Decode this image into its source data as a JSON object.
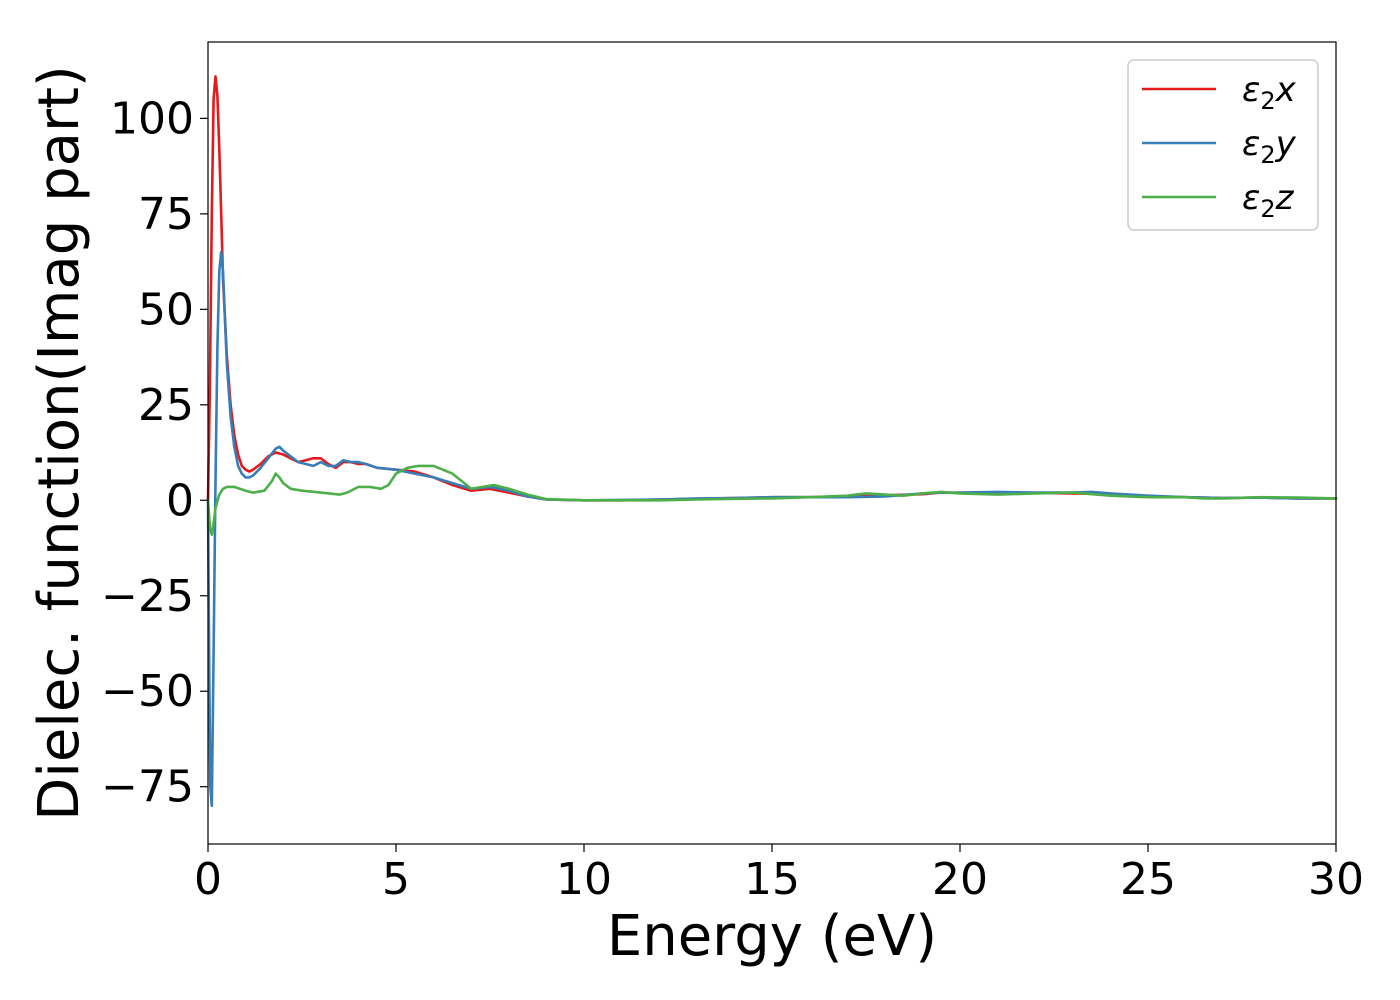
{
  "chart_data": {
    "type": "line",
    "title": "",
    "xlabel": "Energy (eV)",
    "ylabel": "Dielec. function(Imag part)",
    "xlim": [
      0,
      30
    ],
    "ylim": [
      -90,
      120
    ],
    "xticks": [
      0,
      5,
      10,
      15,
      20,
      25,
      30
    ],
    "xtick_labels": [
      "0",
      "5",
      "10",
      "15",
      "20",
      "25",
      "30"
    ],
    "yticks": [
      -75,
      -50,
      -25,
      0,
      25,
      50,
      75,
      100
    ],
    "ytick_labels": [
      "−75",
      "−50",
      "−25",
      "0",
      "25",
      "50",
      "75",
      "100"
    ],
    "grid": false,
    "legend_position": "top-right",
    "series": [
      {
        "name": "ε2x",
        "legend_base": "ε",
        "legend_sub": "2",
        "legend_var": "x",
        "color": "#e41a1c",
        "x": [
          0,
          0.05,
          0.1,
          0.15,
          0.2,
          0.25,
          0.3,
          0.35,
          0.4,
          0.5,
          0.6,
          0.7,
          0.8,
          0.9,
          1.0,
          1.1,
          1.2,
          1.4,
          1.6,
          1.8,
          2.0,
          2.2,
          2.4,
          2.6,
          2.8,
          3.0,
          3.2,
          3.4,
          3.6,
          3.8,
          4.0,
          4.2,
          4.5,
          5.0,
          5.5,
          6.0,
          6.5,
          7.0,
          7.5,
          8.0,
          8.5,
          9.0,
          10,
          11,
          12,
          13,
          14,
          15,
          16,
          17,
          18,
          19,
          19.5,
          20,
          21,
          22,
          23,
          24,
          25,
          26,
          27,
          28,
          29,
          30
        ],
        "y": [
          0,
          30,
          75,
          105,
          111,
          106,
          92,
          75,
          58,
          38,
          25,
          17,
          12,
          9,
          8,
          7.5,
          8,
          9.5,
          11.5,
          12.5,
          12,
          11,
          10,
          10.5,
          11,
          11,
          9.5,
          8.5,
          10,
          10,
          9.5,
          9.5,
          8.5,
          8,
          7.5,
          6,
          4,
          2.5,
          3,
          2,
          1,
          0.2,
          0,
          0,
          0.2,
          0.4,
          0.6,
          0.8,
          0.8,
          1,
          1.3,
          1.6,
          2,
          1.9,
          2,
          1.9,
          1.8,
          1.6,
          1,
          0.8,
          0.6,
          0.7,
          0.5,
          0.5
        ]
      },
      {
        "name": "ε2y",
        "legend_base": "ε",
        "legend_sub": "2",
        "legend_var": "y",
        "color": "#377eb8",
        "x": [
          0,
          0.03,
          0.06,
          0.1,
          0.15,
          0.2,
          0.25,
          0.3,
          0.35,
          0.4,
          0.45,
          0.5,
          0.6,
          0.7,
          0.8,
          0.9,
          1.0,
          1.1,
          1.2,
          1.4,
          1.6,
          1.8,
          1.9,
          2.0,
          2.2,
          2.4,
          2.6,
          2.8,
          3.0,
          3.2,
          3.4,
          3.6,
          3.8,
          4.0,
          4.2,
          4.5,
          5.0,
          5.5,
          6.0,
          6.5,
          7.0,
          7.5,
          8.0,
          8.5,
          9.0,
          10,
          11,
          12,
          13,
          14,
          15,
          16,
          17,
          18,
          19,
          19.5,
          20,
          21,
          22,
          23,
          23.5,
          24,
          25,
          26,
          27,
          28,
          29,
          30
        ],
        "y": [
          0,
          -40,
          -75,
          -80,
          -40,
          5,
          40,
          60,
          65,
          60,
          48,
          36,
          22,
          14,
          9,
          7,
          6,
          6,
          6.5,
          8.5,
          11,
          13.5,
          14,
          13,
          11.5,
          10,
          9.5,
          9,
          10,
          9,
          9,
          10.5,
          10,
          10,
          9.5,
          8.5,
          8,
          7,
          6,
          4.5,
          3,
          3.5,
          2.5,
          1,
          0.2,
          0,
          0.1,
          0.2,
          0.5,
          0.6,
          0.8,
          0.8,
          0.8,
          1,
          1.8,
          2,
          2,
          2.2,
          2,
          2,
          2.2,
          1.8,
          1.2,
          0.8,
          0.6,
          0.7,
          0.5,
          0.5
        ]
      },
      {
        "name": "ε2z",
        "legend_base": "ε",
        "legend_sub": "2",
        "legend_var": "z",
        "color": "#4daf4a",
        "x": [
          0,
          0.05,
          0.1,
          0.15,
          0.2,
          0.3,
          0.4,
          0.5,
          0.7,
          1.0,
          1.2,
          1.5,
          1.7,
          1.8,
          1.9,
          2.0,
          2.2,
          2.5,
          3.0,
          3.5,
          3.7,
          4.0,
          4.3,
          4.6,
          4.8,
          5.0,
          5.3,
          5.6,
          6.0,
          6.5,
          7.0,
          7.3,
          7.6,
          8.0,
          8.5,
          9.0,
          10,
          11,
          12,
          13,
          14,
          15,
          16,
          17,
          17.5,
          18,
          18.5,
          19,
          19.5,
          20,
          21,
          22,
          23,
          24,
          25,
          26,
          26.5,
          27,
          28,
          29,
          30
        ],
        "y": [
          0,
          -7,
          -9,
          -6,
          -2,
          1.5,
          3,
          3.5,
          3.5,
          2.5,
          2,
          2.5,
          5,
          7,
          6,
          4.5,
          3,
          2.5,
          2,
          1.5,
          2,
          3.5,
          3.5,
          3,
          4,
          7,
          8.5,
          9,
          9,
          7,
          3,
          3.5,
          4,
          3,
          1.5,
          0.3,
          0,
          0,
          0,
          0.2,
          0.4,
          0.5,
          0.8,
          1.2,
          1.8,
          1.5,
          1.2,
          1.8,
          2.2,
          1.8,
          1.5,
          1.8,
          2,
          1.2,
          0.8,
          0.8,
          0.5,
          0.5,
          0.8,
          0.7,
          0.5
        ]
      }
    ]
  }
}
